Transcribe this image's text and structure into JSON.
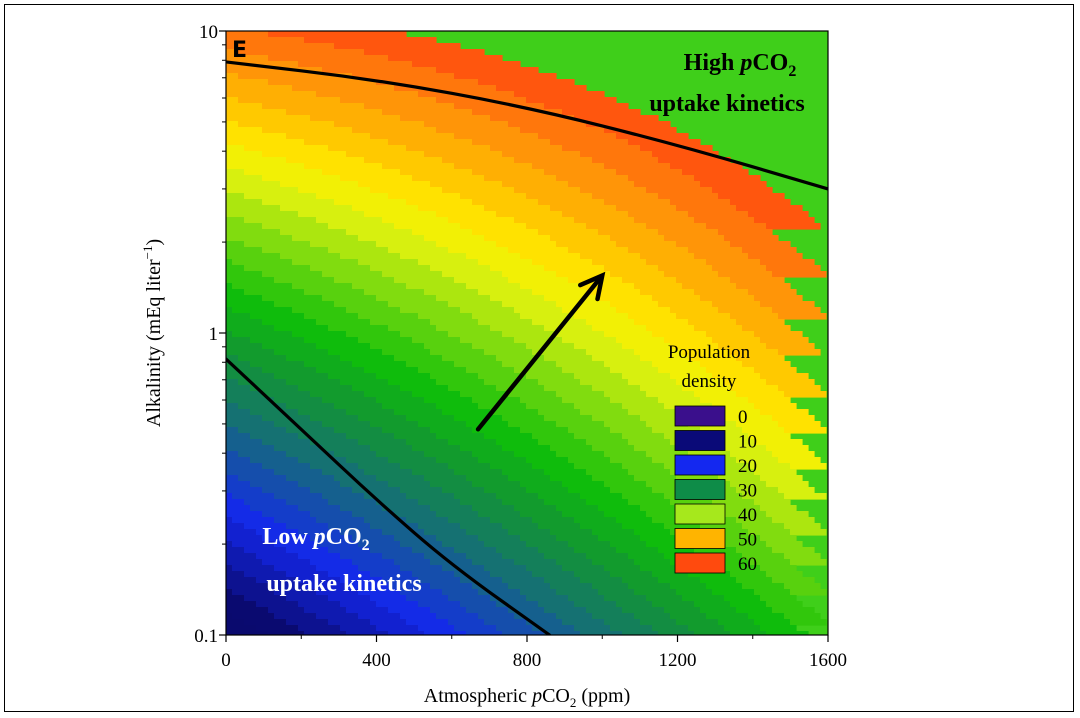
{
  "chart_data": {
    "type": "heatmap",
    "panel_label": "E",
    "xlabel_parts": [
      "Atmospheric ",
      "p",
      "CO",
      "2",
      " (ppm)"
    ],
    "ylabel_parts": [
      "Alkalinity (mEq liter",
      "−1",
      ")"
    ],
    "x_scale": "linear",
    "y_scale": "log",
    "xlim": [
      0,
      1600
    ],
    "ylim": [
      0.1,
      10
    ],
    "x_ticks": [
      0,
      400,
      800,
      1200,
      1600
    ],
    "x_tick_labels": [
      "0",
      "400",
      "800",
      "1200",
      "1600"
    ],
    "y_ticks": [
      0.1,
      1,
      10
    ],
    "y_tick_labels": [
      "0.1",
      "1",
      "10"
    ],
    "colorbar_title": [
      "Population",
      "density"
    ],
    "colorbar": [
      {
        "value": 0,
        "label": "0",
        "color": "#3a0f8c"
      },
      {
        "value": 10,
        "label": "10",
        "color": "#0a0a78"
      },
      {
        "value": 20,
        "label": "20",
        "color": "#1428f0"
      },
      {
        "value": 30,
        "label": "30",
        "color": "#0e8c48"
      },
      {
        "value": 40,
        "label": "40",
        "color": "#a6e81c"
      },
      {
        "value": 50,
        "label": "50",
        "color": "#ffb400"
      },
      {
        "value": 60,
        "label": "60",
        "color": "#ff4a0e"
      }
    ],
    "contour_lines": [
      {
        "name": "high",
        "points": [
          [
            0,
            7.9
          ],
          [
            400,
            6.9
          ],
          [
            800,
            5.6
          ],
          [
            1200,
            4.2
          ],
          [
            1600,
            3.0
          ]
        ]
      },
      {
        "name": "low",
        "points": [
          [
            0,
            0.82
          ],
          [
            200,
            0.48
          ],
          [
            400,
            0.28
          ],
          [
            600,
            0.17
          ],
          [
            860,
            0.1
          ]
        ]
      }
    ],
    "arrow": {
      "from": [
        670,
        0.48
      ],
      "to": [
        1000,
        1.55
      ]
    },
    "annotations": [
      {
        "name": "high-region",
        "lines": [
          [
            "High ",
            "p",
            "CO",
            "2"
          ],
          [
            "uptake kinetics"
          ]
        ],
        "color": "#000000"
      },
      {
        "name": "low-region",
        "lines": [
          [
            "Low ",
            "p",
            "CO",
            "2"
          ],
          [
            "uptake kinetics"
          ]
        ],
        "color": "#ffffff"
      }
    ]
  }
}
